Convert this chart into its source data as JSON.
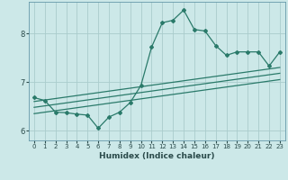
{
  "xlabel": "Humidex (Indice chaleur)",
  "ylabel": "",
  "bg_color": "#cce8e8",
  "grid_color": "#aacccc",
  "line_color": "#2a7a6a",
  "xlim": [
    -0.5,
    23.5
  ],
  "ylim": [
    5.8,
    8.65
  ],
  "yticks": [
    6,
    7,
    8
  ],
  "xticks": [
    0,
    1,
    2,
    3,
    4,
    5,
    6,
    7,
    8,
    9,
    10,
    11,
    12,
    13,
    14,
    15,
    16,
    17,
    18,
    19,
    20,
    21,
    22,
    23
  ],
  "line1_x": [
    0,
    1,
    2,
    3,
    4,
    5,
    6,
    7,
    8,
    9,
    10,
    11,
    12,
    13,
    14,
    15,
    16,
    17,
    18,
    19,
    20,
    21,
    22,
    23
  ],
  "line1_y": [
    6.68,
    6.62,
    6.38,
    6.37,
    6.34,
    6.32,
    6.05,
    6.28,
    6.38,
    6.58,
    6.93,
    7.72,
    8.22,
    8.27,
    8.48,
    8.08,
    8.05,
    7.75,
    7.55,
    7.62,
    7.62,
    7.62,
    7.33,
    7.62
  ],
  "line2_x": [
    0,
    23
  ],
  "line2_y": [
    6.6,
    7.3
  ],
  "line3_x": [
    0,
    23
  ],
  "line3_y": [
    6.48,
    7.18
  ],
  "line4_x": [
    0,
    23
  ],
  "line4_y": [
    6.35,
    7.05
  ]
}
